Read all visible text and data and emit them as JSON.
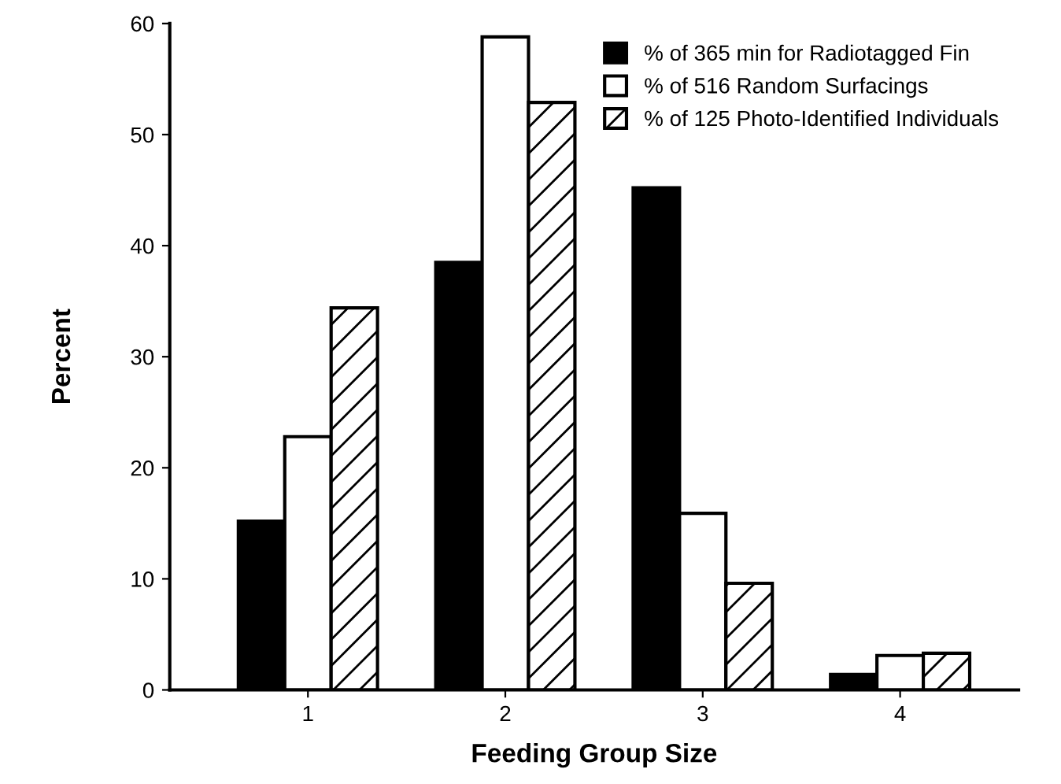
{
  "chart_data": {
    "type": "bar",
    "xlabel": "Feeding Group Size",
    "ylabel": "Percent",
    "categories": [
      "1",
      "2",
      "3",
      "4"
    ],
    "series": [
      {
        "name": "% of 365 min for Radiotagged Fin",
        "color": "#000000",
        "values": [
          15.2,
          38.5,
          45.2,
          1.4
        ]
      },
      {
        "name": "% of 516 Random Surfacings",
        "color": "#ffffff",
        "values": [
          22.8,
          58.8,
          15.9,
          3.1
        ]
      },
      {
        "name": "% of 125 Photo-Identified Individuals",
        "color": "#000000",
        "values": [
          34.4,
          52.9,
          9.6,
          3.3
        ]
      }
    ],
    "ylim": [
      0,
      60
    ],
    "yticks": [
      0,
      10,
      20,
      30,
      40,
      50,
      60
    ],
    "grid": false,
    "legend": "top right"
  }
}
